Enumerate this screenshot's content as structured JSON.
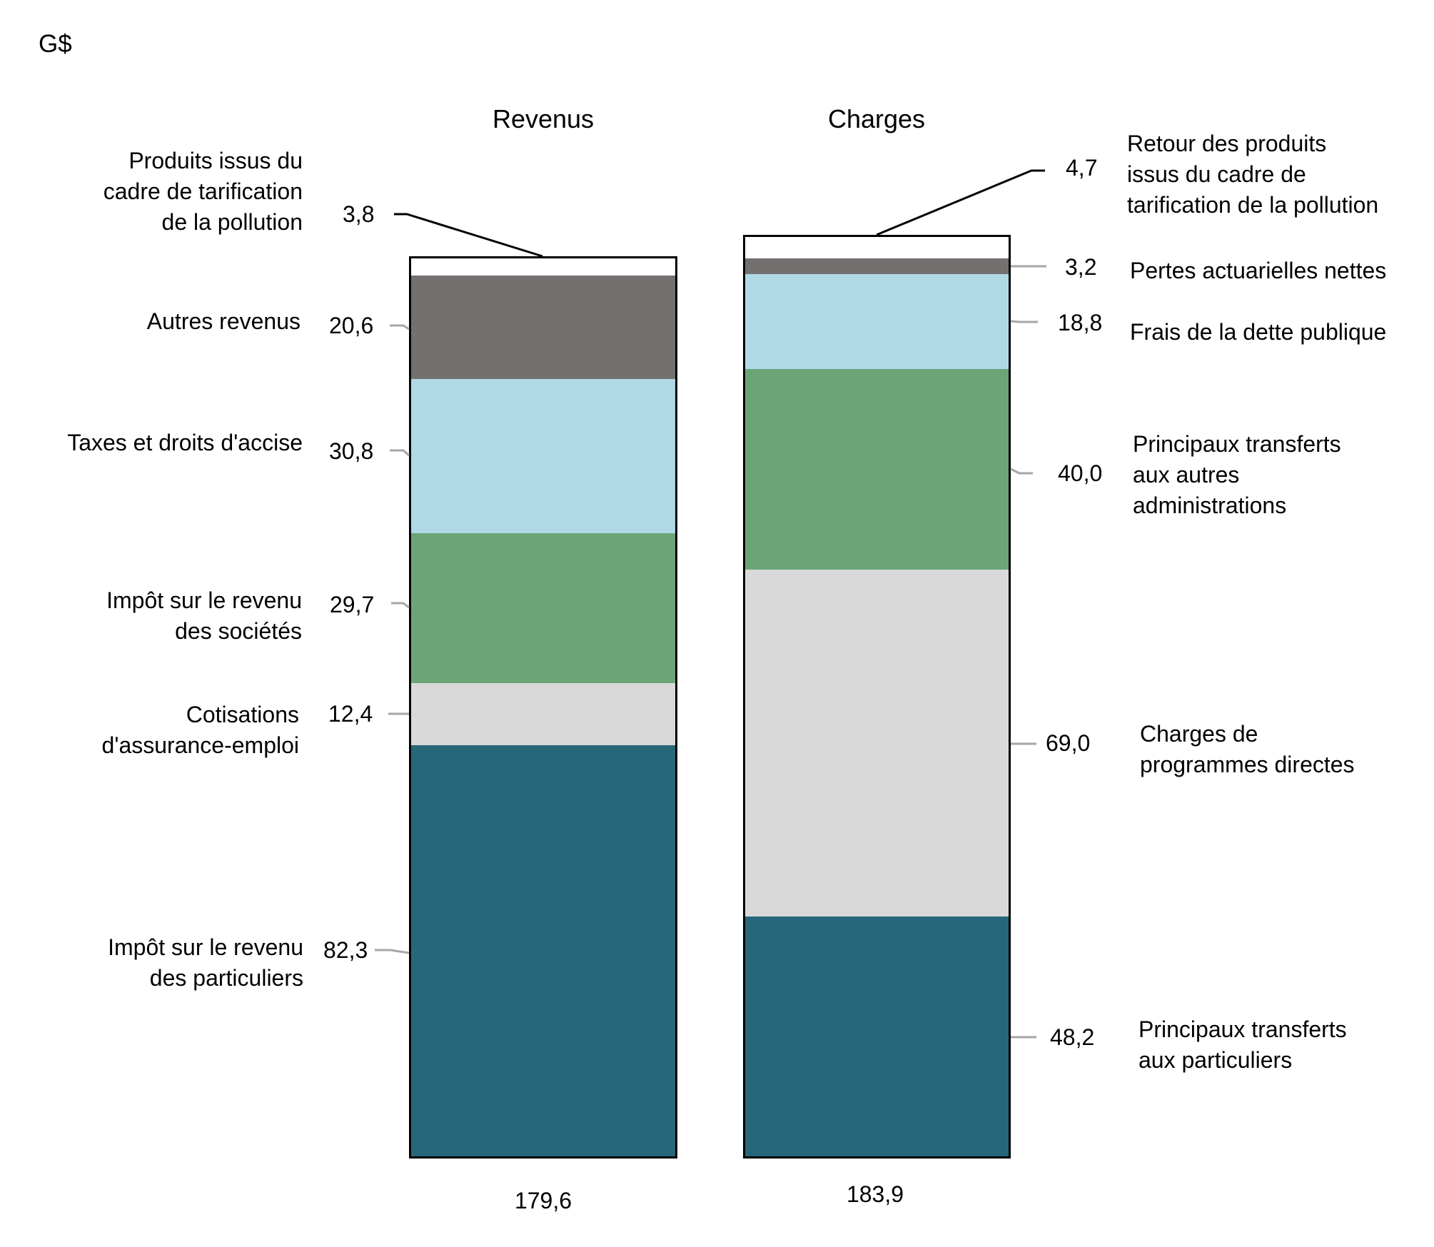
{
  "chart_data": {
    "type": "bar",
    "stacked": true,
    "unit_label": "G$",
    "categories": [
      "Revenus",
      "Charges"
    ],
    "totals": [
      "179,6",
      "183,9"
    ],
    "series_revenus": [
      {
        "name": "Impôt sur le revenu des particuliers",
        "value": 82.3,
        "label": "82,3",
        "color": "#286779"
      },
      {
        "name": "Cotisations d'assurance-emploi",
        "value": 12.4,
        "label": "12,4",
        "color": "#D9D9D9"
      },
      {
        "name": "Impôt sur le revenu des sociétés",
        "value": 29.7,
        "label": "29,7",
        "color": "#6BA577"
      },
      {
        "name": "Taxes et droits d'accise",
        "value": 30.8,
        "label": "30,8",
        "color": "#B0D9E6"
      },
      {
        "name": "Autres revenus",
        "value": 20.6,
        "label": "20,6",
        "color": "#747070"
      },
      {
        "name": "Produits issus du cadre de tarification de la pollution",
        "value": 3.8,
        "label": "3,8",
        "color": "#FFFFFF"
      }
    ],
    "series_charges": [
      {
        "name": "Principaux transferts aux particuliers",
        "value": 48.2,
        "label": "48,2",
        "color": "#286779"
      },
      {
        "name": "Charges de programmes directes",
        "value": 69.0,
        "label": "69,0",
        "color": "#D9D9D9"
      },
      {
        "name": "Principaux transferts aux autres administrations",
        "value": 40.0,
        "label": "40,0",
        "color": "#6BA577"
      },
      {
        "name": "Frais de la dette publique",
        "value": 18.8,
        "label": "18,8",
        "color": "#B0D9E6"
      },
      {
        "name": "Pertes actuarielles nettes",
        "value": 3.2,
        "label": "3,2",
        "color": "#747070"
      },
      {
        "name": "Retour des produits issus du cadre de tarification de la pollution",
        "value": 4.7,
        "label": "4,7",
        "color": "#FFFFFF"
      }
    ],
    "title": "",
    "xlabel": "",
    "ylabel": "G$",
    "grid": false,
    "legend": "inline labels beside bars"
  },
  "header": {
    "unit": "G$"
  },
  "columns": {
    "revenus": {
      "title": "Revenus",
      "total": "179,6"
    },
    "charges": {
      "title": "Charges",
      "total": "183,9"
    }
  },
  "labels": {
    "revenus": [
      {
        "text": "Produits issus du\ncadre de tarification\nde la pollution",
        "value": "3,8"
      },
      {
        "text": "Autres revenus",
        "value": "20,6"
      },
      {
        "text": "Taxes et droits d'accise",
        "value": "30,8"
      },
      {
        "text": "Impôt sur le revenu\ndes sociétés",
        "value": "29,7"
      },
      {
        "text": "Cotisations\nd'assurance-emploi",
        "value": "12,4"
      },
      {
        "text": "Impôt sur le revenu\ndes particuliers",
        "value": "82,3"
      }
    ],
    "charges": [
      {
        "text": "Retour des produits\nissus du cadre de\ntarification de la pollution",
        "value": "4,7"
      },
      {
        "text": "Pertes actuarielles nettes",
        "value": "3,2"
      },
      {
        "text": "Frais de la dette publique",
        "value": "18,8"
      },
      {
        "text": "Principaux transferts\naux autres\nadministrations",
        "value": "40,0"
      },
      {
        "text": "Charges de\nprogrammes directes",
        "value": "69,0"
      },
      {
        "text": "Principaux transferts\naux particuliers",
        "value": "48,2"
      }
    ]
  }
}
